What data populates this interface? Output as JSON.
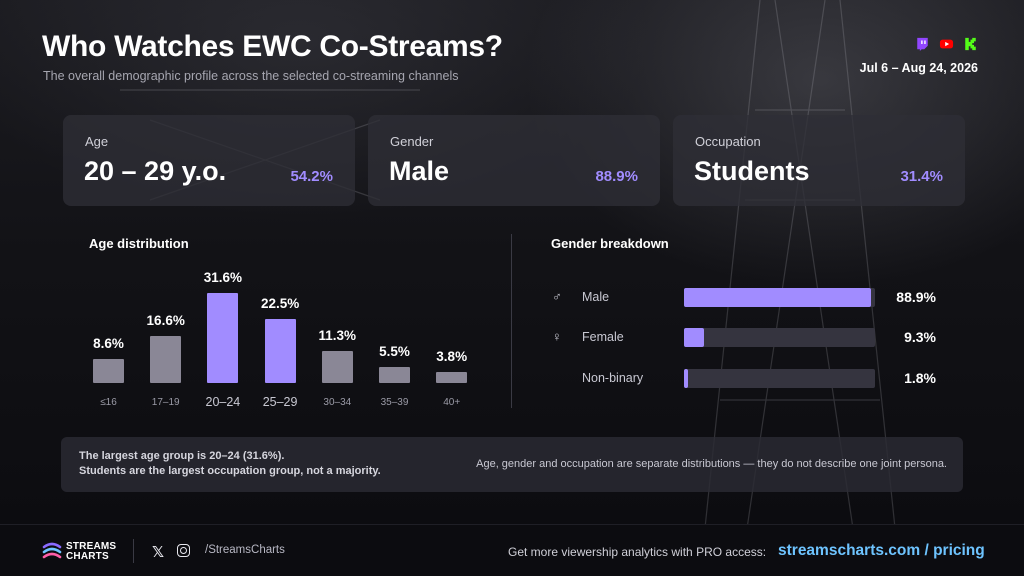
{
  "header": {
    "title": "Who Watches EWC Co-Streams?",
    "subtitle": "The overall demographic profile across the selected co-streaming channels",
    "date_range": "Jul 6 – Aug 24, 2026",
    "platforms": [
      "twitch-icon",
      "youtube-icon",
      "kick-icon"
    ]
  },
  "cards": [
    {
      "label": "Age",
      "value": "20 – 29 y.o.",
      "pct": "54.2%"
    },
    {
      "label": "Gender",
      "value": "Male",
      "pct": "88.9%"
    },
    {
      "label": "Occupation",
      "value": "Students",
      "pct": "31.4%"
    }
  ],
  "age_section": {
    "title": "Age distribution"
  },
  "gender_section": {
    "title": "Gender breakdown"
  },
  "chart_data": [
    {
      "type": "bar",
      "title": "Age distribution",
      "categories": [
        "≤16",
        "17–19",
        "20–24",
        "25–29",
        "30–34",
        "35–39",
        "40+"
      ],
      "values": [
        8.6,
        16.6,
        31.6,
        22.5,
        11.3,
        5.5,
        3.8
      ],
      "value_labels": [
        "8.6%",
        "16.6%",
        "31.6%",
        "22.5%",
        "11.3%",
        "5.5%",
        "3.8%"
      ],
      "highlighted": [
        "20–24",
        "25–29"
      ],
      "ylim": [
        0,
        31.6
      ],
      "grid": false
    },
    {
      "type": "bar",
      "orientation": "horizontal",
      "title": "Gender breakdown",
      "categories": [
        "Male",
        "Female",
        "Non-binary"
      ],
      "icons": [
        "male-icon",
        "female-icon",
        ""
      ],
      "values": [
        88.9,
        9.3,
        1.8
      ],
      "value_labels": [
        "88.9%",
        "9.3%",
        "1.8%"
      ],
      "xlim": [
        0,
        100
      ],
      "grid": false
    }
  ],
  "note": {
    "line1": "The largest age group is 20–24 (31.6%).",
    "line2": "Students are the largest occupation group, not a majority.",
    "right": "Age, gender and occupation are separate distributions — they do not describe one joint persona."
  },
  "footer": {
    "logo_line1": "STREAMS",
    "logo_line2": "CHARTS",
    "handle": "/StreamsCharts",
    "cta": "Get more viewership analytics with PRO access:",
    "cta_link": "streamscharts.com / pricing"
  },
  "colors": {
    "accent": "#a18cff",
    "bar_muted": "#8a8796",
    "track": "#35343f",
    "link": "#6ec4ff"
  }
}
